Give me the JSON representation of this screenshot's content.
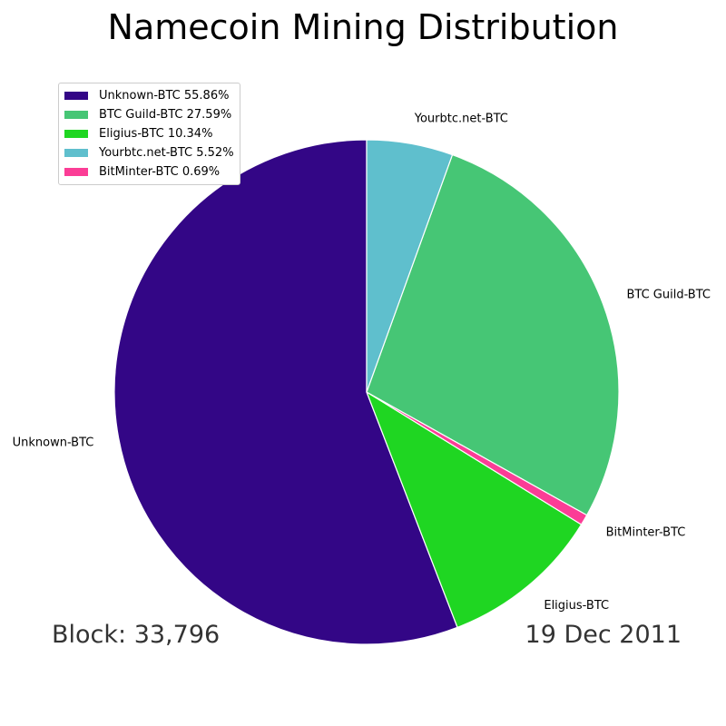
{
  "chart_data": {
    "type": "pie",
    "title": "Namecoin Mining Distribution",
    "slices": [
      {
        "label": "Unknown-BTC",
        "value": 55.86,
        "color": "#330686",
        "legend": "Unknown-BTC 55.86%"
      },
      {
        "label": "Eligius-BTC",
        "value": 10.34,
        "color": "#1fd622",
        "legend": "Eligius-BTC 10.34%"
      },
      {
        "label": "BitMinter-BTC",
        "value": 0.69,
        "color": "#fb3d96",
        "legend": "BitMinter-BTC 0.69%"
      },
      {
        "label": "BTC Guild-BTC",
        "value": 27.59,
        "color": "#46c675",
        "legend": "BTC Guild-BTC 27.59%"
      },
      {
        "label": "Yourbtc.net-BTC",
        "value": 5.52,
        "color": "#5fbfcd",
        "legend": "Yourbtc.net-BTC 5.52%"
      }
    ],
    "legend_order": [
      "Unknown-BTC",
      "BTC Guild-BTC",
      "Eligius-BTC",
      "Yourbtc.net-BTC",
      "BitMinter-BTC"
    ],
    "legend_placement": "top-left",
    "start_angle_deg": 90,
    "direction": "counterclockwise"
  },
  "footer": {
    "block": "Block: 33,796",
    "date": "19 Dec 2011"
  }
}
